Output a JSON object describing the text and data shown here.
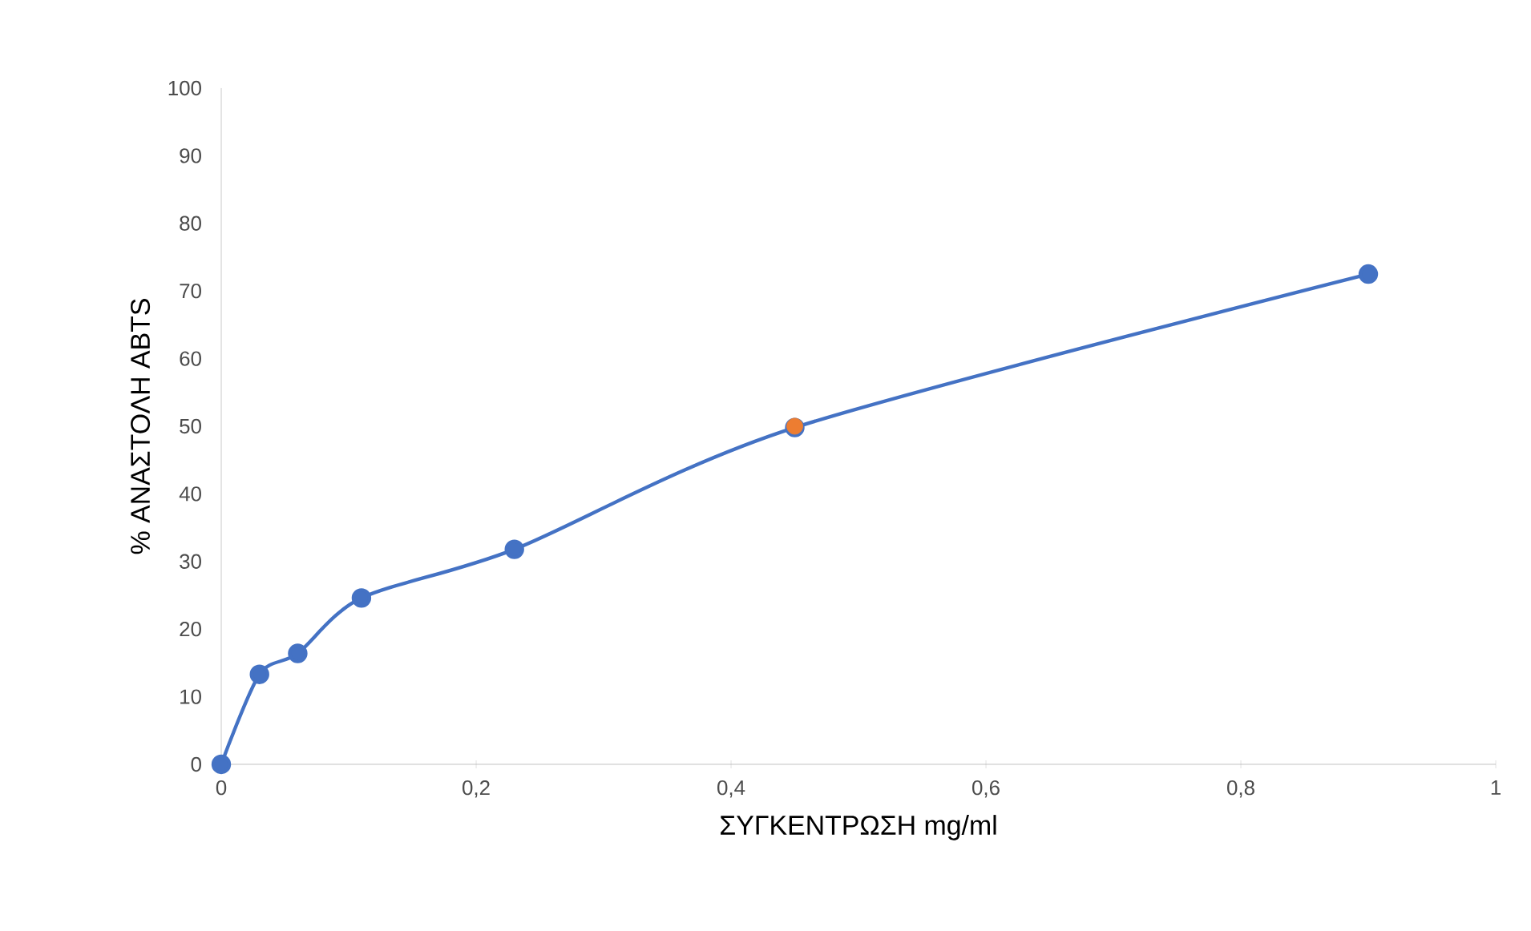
{
  "chart_data": {
    "type": "line",
    "xlabel": "ΣΥΓΚΕΝΤΡΩΣΗ mg/ml",
    "ylabel": "% ΑΝΑΣΤΟΛΗ ABTS",
    "xlim": [
      0,
      1
    ],
    "ylim": [
      0,
      100
    ],
    "xticks": [
      0,
      {
        "value": 0.2,
        "label": "0,2"
      },
      {
        "value": 0.4,
        "label": "0,4"
      },
      {
        "value": 0.6,
        "label": "0,6"
      },
      {
        "value": 0.8,
        "label": "0,8"
      },
      1
    ],
    "yticks": [
      0,
      10,
      20,
      30,
      40,
      50,
      60,
      70,
      80,
      90,
      100
    ],
    "grid": false,
    "marker": "circle",
    "line_style": "solid",
    "series": [
      {
        "color": "#4472c4",
        "x": [
          0,
          0.03,
          0.06,
          0.11,
          0.23,
          0.45,
          0.9
        ],
        "values": [
          0,
          13.3,
          16.4,
          24.6,
          31.8,
          49.8,
          72.5
        ]
      },
      {
        "type": "scatter",
        "color": "#ed7d31",
        "x": [
          0.45
        ],
        "values": [
          50
        ]
      }
    ]
  }
}
